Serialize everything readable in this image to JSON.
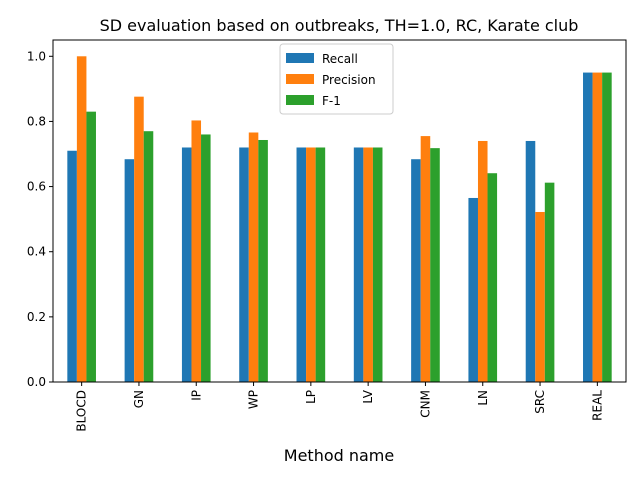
{
  "chart_data": {
    "type": "bar",
    "title": "SD evaluation based on outbreaks, TH=1.0, RC, Karate club",
    "xlabel": "Method name",
    "ylabel": "",
    "ylim": [
      0,
      1.05
    ],
    "yticks": [
      0.0,
      0.2,
      0.4,
      0.6,
      0.8,
      1.0
    ],
    "ytick_labels": [
      "0.0",
      "0.2",
      "0.4",
      "0.6",
      "0.8",
      "1.0"
    ],
    "grid": false,
    "legend_position": "top-center",
    "categories": [
      "BLOCD",
      "GN",
      "IP",
      "WP",
      "LP",
      "LV",
      "CNM",
      "LN",
      "SRC",
      "REAL"
    ],
    "series": [
      {
        "name": "Recall",
        "color": "#1f77b4",
        "values": [
          0.71,
          0.684,
          0.72,
          0.72,
          0.72,
          0.72,
          0.684,
          0.565,
          0.74,
          0.95
        ]
      },
      {
        "name": "Precision",
        "color": "#ff7f0e",
        "values": [
          1.0,
          0.876,
          0.803,
          0.766,
          0.72,
          0.72,
          0.755,
          0.74,
          0.522,
          0.95
        ]
      },
      {
        "name": "F-1",
        "color": "#2ca02c",
        "values": [
          0.83,
          0.77,
          0.76,
          0.743,
          0.72,
          0.72,
          0.718,
          0.641,
          0.612,
          0.95
        ]
      }
    ]
  }
}
